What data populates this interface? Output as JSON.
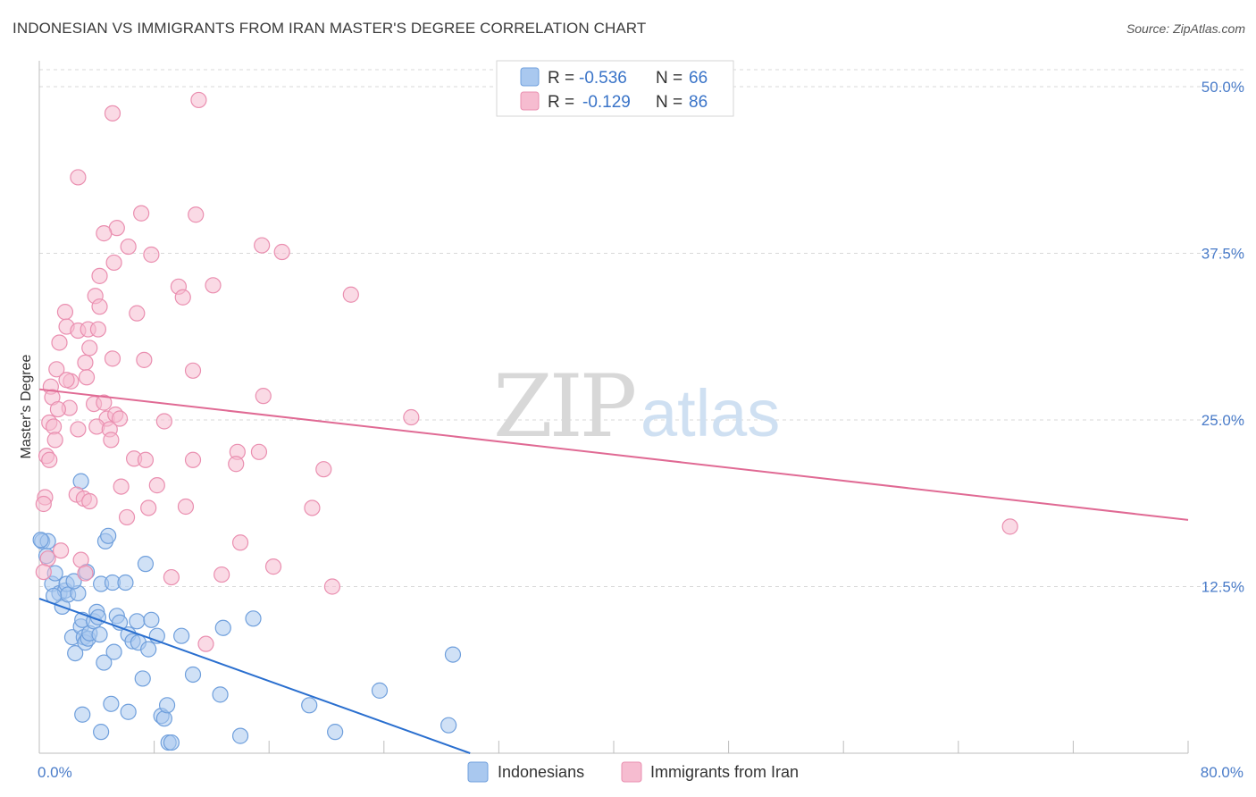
{
  "title": "INDONESIAN VS IMMIGRANTS FROM IRAN MASTER'S DEGREE CORRELATION CHART",
  "source": "Source: ZipAtlas.com",
  "watermark": {
    "zip": "ZIP",
    "atlas": "atlas"
  },
  "legend": {
    "rows": [
      {
        "r_label": "R =",
        "r_value": "-0.536",
        "n_label": "N =",
        "n_value": "66"
      },
      {
        "r_label": "R =",
        "r_value": "-0.129",
        "n_label": "N =",
        "n_value": "86"
      }
    ]
  },
  "colors": {
    "blue_fill": "#a9c8ef",
    "blue_stroke": "#6f9fdc",
    "blue_line": "#2a6fcf",
    "pink_fill": "#f6bcd0",
    "pink_stroke": "#ea8fb0",
    "pink_line": "#e06a94",
    "grid": "#d9d9d9",
    "axis_label": "#4a7cc9"
  },
  "chart_data": {
    "type": "scatter",
    "title": "INDONESIAN VS IMMIGRANTS FROM IRAN MASTER'S DEGREE CORRELATION CHART",
    "xlabel": "",
    "ylabel": "Master's Degree",
    "xlim": [
      0,
      80
    ],
    "ylim": [
      0,
      50
    ],
    "x_tick_labels": [
      "0.0%",
      "80.0%"
    ],
    "y_ticks": [
      12.5,
      25.0,
      37.5,
      50.0
    ],
    "y_tick_labels": [
      "12.5%",
      "25.0%",
      "37.5%",
      "50.0%"
    ],
    "grid": true,
    "series": [
      {
        "name": "Indonesians",
        "r": -0.536,
        "n": 66,
        "trend": {
          "x": [
            0,
            30
          ],
          "y": [
            11.6,
            0
          ]
        },
        "points": [
          [
            0.2,
            15.9
          ],
          [
            0.5,
            14.8
          ],
          [
            0.6,
            15.9
          ],
          [
            0.9,
            12.7
          ],
          [
            1.1,
            13.5
          ],
          [
            1.4,
            12.0
          ],
          [
            1.6,
            11.0
          ],
          [
            1.8,
            12.2
          ],
          [
            1.9,
            12.7
          ],
          [
            2.0,
            11.9
          ],
          [
            2.3,
            8.7
          ],
          [
            2.5,
            7.5
          ],
          [
            2.7,
            12.0
          ],
          [
            2.9,
            9.5
          ],
          [
            3.0,
            10.0
          ],
          [
            3.1,
            8.7
          ],
          [
            3.2,
            8.3
          ],
          [
            3.3,
            13.6
          ],
          [
            3.4,
            8.6
          ],
          [
            3.5,
            9.0
          ],
          [
            3.8,
            9.9
          ],
          [
            4.0,
            10.6
          ],
          [
            4.1,
            10.2
          ],
          [
            4.2,
            8.9
          ],
          [
            4.3,
            12.7
          ],
          [
            4.5,
            6.8
          ],
          [
            4.6,
            15.9
          ],
          [
            4.8,
            16.3
          ],
          [
            5.1,
            12.8
          ],
          [
            5.2,
            7.6
          ],
          [
            5.4,
            10.3
          ],
          [
            5.6,
            9.8
          ],
          [
            6.0,
            12.8
          ],
          [
            6.2,
            8.9
          ],
          [
            6.5,
            8.4
          ],
          [
            6.8,
            9.9
          ],
          [
            6.9,
            8.3
          ],
          [
            7.2,
            5.6
          ],
          [
            7.4,
            14.2
          ],
          [
            7.6,
            7.8
          ],
          [
            7.8,
            10.0
          ],
          [
            8.2,
            8.8
          ],
          [
            8.5,
            2.8
          ],
          [
            8.7,
            2.6
          ],
          [
            8.9,
            3.6
          ],
          [
            9.0,
            0.8
          ],
          [
            9.2,
            0.8
          ],
          [
            9.9,
            8.8
          ],
          [
            10.7,
            5.9
          ],
          [
            12.6,
            4.4
          ],
          [
            12.8,
            9.4
          ],
          [
            14.0,
            1.3
          ],
          [
            14.9,
            10.1
          ],
          [
            18.8,
            3.6
          ],
          [
            20.6,
            1.6
          ],
          [
            23.7,
            4.7
          ],
          [
            28.5,
            2.1
          ],
          [
            28.8,
            7.4
          ],
          [
            4.3,
            1.6
          ],
          [
            5.0,
            3.7
          ],
          [
            6.2,
            3.1
          ],
          [
            3.0,
            2.9
          ],
          [
            2.9,
            20.4
          ],
          [
            2.4,
            12.9
          ],
          [
            1.0,
            11.8
          ],
          [
            0.1,
            16.0
          ]
        ]
      },
      {
        "name": "Immigrants from Iran",
        "r": -0.129,
        "n": 86,
        "trend": {
          "x": [
            0,
            80
          ],
          "y": [
            27.3,
            17.5
          ]
        },
        "points": [
          [
            11.1,
            49.0
          ],
          [
            5.1,
            48.0
          ],
          [
            2.7,
            43.2
          ],
          [
            7.1,
            40.5
          ],
          [
            10.9,
            40.4
          ],
          [
            5.4,
            39.4
          ],
          [
            4.5,
            39.0
          ],
          [
            6.2,
            38.0
          ],
          [
            7.8,
            37.4
          ],
          [
            15.5,
            38.1
          ],
          [
            16.9,
            37.6
          ],
          [
            5.2,
            36.8
          ],
          [
            4.2,
            35.8
          ],
          [
            9.7,
            35.0
          ],
          [
            12.1,
            35.1
          ],
          [
            10.0,
            34.2
          ],
          [
            21.7,
            34.4
          ],
          [
            3.9,
            34.3
          ],
          [
            4.2,
            33.5
          ],
          [
            6.8,
            33.0
          ],
          [
            1.8,
            33.1
          ],
          [
            1.9,
            32.0
          ],
          [
            2.7,
            31.7
          ],
          [
            3.4,
            31.8
          ],
          [
            4.1,
            31.8
          ],
          [
            1.4,
            30.8
          ],
          [
            3.5,
            30.4
          ],
          [
            5.1,
            29.6
          ],
          [
            7.3,
            29.5
          ],
          [
            3.2,
            29.3
          ],
          [
            1.2,
            28.8
          ],
          [
            10.7,
            28.7
          ],
          [
            2.2,
            27.9
          ],
          [
            3.3,
            28.2
          ],
          [
            1.9,
            28.0
          ],
          [
            0.8,
            27.5
          ],
          [
            15.6,
            26.8
          ],
          [
            0.9,
            26.7
          ],
          [
            3.8,
            26.2
          ],
          [
            2.1,
            25.9
          ],
          [
            4.5,
            26.3
          ],
          [
            1.3,
            25.8
          ],
          [
            4.7,
            25.1
          ],
          [
            5.3,
            25.4
          ],
          [
            5.6,
            25.1
          ],
          [
            8.7,
            24.9
          ],
          [
            0.7,
            24.8
          ],
          [
            1.0,
            24.5
          ],
          [
            2.7,
            24.3
          ],
          [
            4.0,
            24.5
          ],
          [
            4.9,
            24.3
          ],
          [
            1.1,
            23.5
          ],
          [
            5.0,
            23.5
          ],
          [
            13.8,
            22.6
          ],
          [
            15.3,
            22.6
          ],
          [
            6.6,
            22.1
          ],
          [
            7.4,
            22.0
          ],
          [
            10.7,
            22.0
          ],
          [
            13.7,
            21.7
          ],
          [
            0.5,
            22.3
          ],
          [
            0.7,
            22.0
          ],
          [
            19.8,
            21.3
          ],
          [
            5.7,
            20.0
          ],
          [
            8.2,
            20.1
          ],
          [
            2.6,
            19.4
          ],
          [
            3.1,
            19.1
          ],
          [
            0.4,
            19.2
          ],
          [
            0.3,
            18.7
          ],
          [
            10.2,
            18.5
          ],
          [
            7.6,
            18.4
          ],
          [
            19.0,
            18.4
          ],
          [
            3.5,
            18.9
          ],
          [
            6.1,
            17.7
          ],
          [
            14.0,
            15.8
          ],
          [
            1.5,
            15.2
          ],
          [
            0.6,
            14.6
          ],
          [
            2.9,
            14.5
          ],
          [
            16.3,
            14.0
          ],
          [
            3.2,
            13.5
          ],
          [
            0.3,
            13.6
          ],
          [
            12.7,
            13.4
          ],
          [
            9.2,
            13.2
          ],
          [
            20.4,
            12.5
          ],
          [
            11.6,
            8.2
          ],
          [
            67.6,
            17.0
          ],
          [
            25.9,
            25.2
          ]
        ]
      }
    ]
  },
  "bottom_legend": {
    "items": [
      "Indonesians",
      "Immigrants from Iran"
    ]
  }
}
